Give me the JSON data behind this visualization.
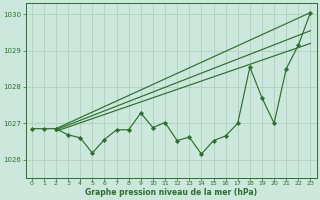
{
  "xlabel": "Graphe pression niveau de la mer (hPa)",
  "bg_color": "#cce8dc",
  "grid_color": "#aaccb8",
  "line_color": "#2d6e2d",
  "xlim": [
    -0.5,
    23.5
  ],
  "ylim": [
    1025.5,
    1030.3
  ],
  "yticks": [
    1026,
    1027,
    1028,
    1029,
    1030
  ],
  "xticks": [
    0,
    1,
    2,
    3,
    4,
    5,
    6,
    7,
    8,
    9,
    10,
    11,
    12,
    13,
    14,
    15,
    16,
    17,
    18,
    19,
    20,
    21,
    22,
    23
  ],
  "data_x": [
    0,
    1,
    2,
    3,
    4,
    5,
    6,
    7,
    8,
    9,
    10,
    11,
    12,
    13,
    14,
    15,
    16,
    17,
    18,
    19,
    20,
    21,
    22,
    23
  ],
  "data_y": [
    1026.85,
    1026.85,
    1026.85,
    1026.68,
    1026.6,
    1026.18,
    1026.55,
    1026.82,
    1026.82,
    1027.28,
    1026.88,
    1027.02,
    1026.52,
    1026.62,
    1026.15,
    1026.52,
    1026.65,
    1027.0,
    1028.55,
    1027.7,
    1027.0,
    1028.5,
    1029.15,
    1030.05
  ],
  "trend1_x": [
    2,
    23
  ],
  "trend1_y": [
    1026.85,
    1030.05
  ],
  "trend2_x": [
    2,
    23
  ],
  "trend2_y": [
    1026.82,
    1029.55
  ],
  "trend3_x": [
    2,
    23
  ],
  "trend3_y": [
    1026.78,
    1029.2
  ]
}
